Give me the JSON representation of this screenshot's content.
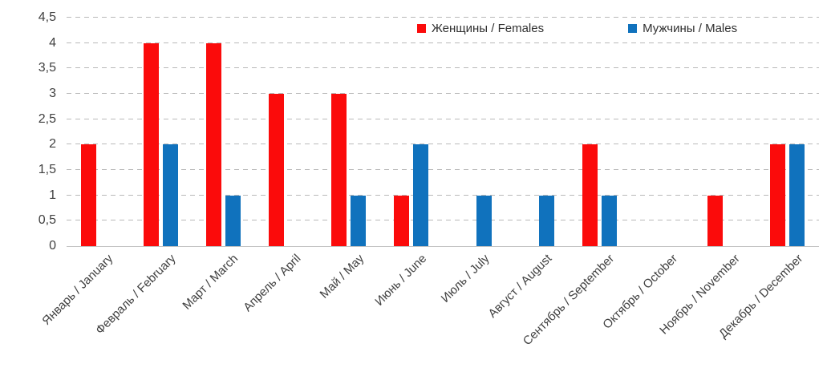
{
  "chart_data": {
    "type": "bar",
    "title": "",
    "xlabel": "",
    "ylabel": "",
    "categories": [
      "Январь / January",
      "Февраль / February",
      "Март / March",
      "Апрель / April",
      "Май / May",
      "Июнь / June",
      "Июль / July",
      "Август / August",
      "Сентябрь / September",
      "Октябрь / October",
      "Ноябрь / November",
      "Декабрь / December"
    ],
    "series": [
      {
        "name": "Женщины / Females",
        "color": "#fb0b0b",
        "values": [
          2,
          4,
          4,
          3,
          3,
          1,
          0,
          0,
          2,
          0,
          1,
          2
        ]
      },
      {
        "name": "Мужчины / Males",
        "color": "#1072bd",
        "values": [
          0,
          2,
          1,
          0,
          1,
          2,
          1,
          1,
          1,
          0,
          0,
          2
        ]
      }
    ],
    "ylim": [
      0,
      4.5
    ],
    "ytick_step": 0.5,
    "ytick_labels": [
      "0",
      "0,5",
      "1",
      "1,5",
      "2",
      "2,5",
      "3",
      "3,5",
      "4",
      "4,5"
    ],
    "grid": "horizontal-dashed",
    "legend_position": "top-inside"
  }
}
